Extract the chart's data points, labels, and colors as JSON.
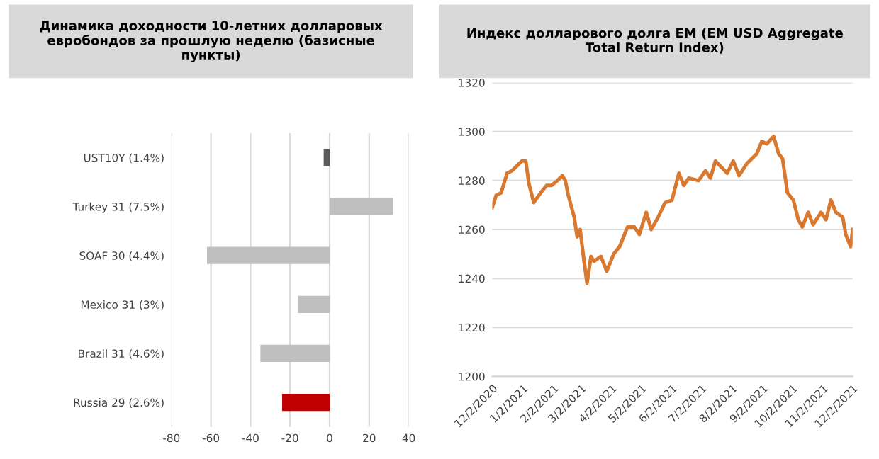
{
  "chart_data": [
    {
      "type": "bar",
      "orientation": "horizontal",
      "title": "Динамика доходности 10-летних долларовых евробондов за прошлую неделю (базисные пункты)",
      "categories": [
        "UST10Y (1.4%)",
        "Turkey 31 (7.5%)",
        "SOAF 30 (4.4%)",
        "Mexico 31 (3%)",
        "Brazil 31 (4.6%)",
        "Russia 29 (2.6%)"
      ],
      "values": [
        -3,
        32,
        -62,
        -16,
        -35,
        -24
      ],
      "colors": [
        "#595959",
        "#bfbfbf",
        "#bfbfbf",
        "#bfbfbf",
        "#bfbfbf",
        "#c00000"
      ],
      "xlim": [
        -80,
        40
      ],
      "xticks": [
        -80,
        -60,
        -40,
        -20,
        0,
        20,
        40
      ],
      "grid": "x"
    },
    {
      "type": "line",
      "title": "Индекс долларового долга EM (EM USD Aggregate Total Return Index)",
      "x": [
        "2020-12-02",
        "2020-12-06",
        "2020-12-11",
        "2020-12-17",
        "2020-12-22",
        "2020-12-27",
        "2021-01-01",
        "2021-01-05",
        "2021-01-08",
        "2021-01-13",
        "2021-01-20",
        "2021-01-26",
        "2021-01-31",
        "2021-02-06",
        "2021-02-11",
        "2021-02-14",
        "2021-02-17",
        "2021-02-23",
        "2021-02-26",
        "2021-03-01",
        "2021-03-05",
        "2021-03-08",
        "2021-03-12",
        "2021-03-15",
        "2021-03-22",
        "2021-03-28",
        "2021-04-04",
        "2021-04-10",
        "2021-04-18",
        "2021-04-25",
        "2021-04-30",
        "2021-05-07",
        "2021-05-12",
        "2021-05-19",
        "2021-05-26",
        "2021-06-02",
        "2021-06-09",
        "2021-06-14",
        "2021-06-19",
        "2021-06-29",
        "2021-07-06",
        "2021-07-11",
        "2021-07-16",
        "2021-07-28",
        "2021-08-03",
        "2021-08-09",
        "2021-08-17",
        "2021-08-27",
        "2021-09-01",
        "2021-09-06",
        "2021-09-13",
        "2021-09-18",
        "2021-09-22",
        "2021-09-27",
        "2021-10-03",
        "2021-10-08",
        "2021-10-12",
        "2021-10-18",
        "2021-10-23",
        "2021-10-31",
        "2021-11-05",
        "2021-11-10",
        "2021-11-15",
        "2021-11-22",
        "2021-11-25",
        "2021-11-30",
        "2021-12-02"
      ],
      "series": [
        {
          "color": "#d9782f",
          "values": [
            1269,
            1274,
            1275,
            1283,
            1284,
            1286,
            1288,
            1288,
            1279,
            1271,
            1275,
            1278,
            1278,
            1280,
            1282,
            1280,
            1274,
            1265,
            1257,
            1260,
            1247,
            1238,
            1249,
            1247,
            1249,
            1243,
            1250,
            1253,
            1261,
            1261,
            1258,
            1267,
            1260,
            1265,
            1271,
            1272,
            1283,
            1278,
            1281,
            1280,
            1284,
            1281,
            1288,
            1283,
            1288,
            1282,
            1287,
            1291,
            1296,
            1295,
            1298,
            1291,
            1289,
            1275,
            1272,
            1264,
            1261,
            1267,
            1262,
            1267,
            1264,
            1272,
            1267,
            1265,
            1258,
            1253,
            1260
          ]
        }
      ],
      "xlim": [
        "2020-12-02",
        "2021-12-02"
      ],
      "xticks": [
        {
          "value": "2020-12-02",
          "label": "12/2/2020"
        },
        {
          "value": "2021-01-02",
          "label": "1/2/2021"
        },
        {
          "value": "2021-02-02",
          "label": "2/2/2021"
        },
        {
          "value": "2021-03-02",
          "label": "3/2/2021"
        },
        {
          "value": "2021-04-02",
          "label": "4/2/2021"
        },
        {
          "value": "2021-05-02",
          "label": "5/2/2021"
        },
        {
          "value": "2021-06-02",
          "label": "6/2/2021"
        },
        {
          "value": "2021-07-02",
          "label": "7/2/2021"
        },
        {
          "value": "2021-08-02",
          "label": "8/2/2021"
        },
        {
          "value": "2021-09-02",
          "label": "9/2/2021"
        },
        {
          "value": "2021-10-02",
          "label": "10/2/2021"
        },
        {
          "value": "2021-11-02",
          "label": "11/2/2021"
        },
        {
          "value": "2021-12-02",
          "label": "12/2/2021"
        }
      ],
      "ylim": [
        1200,
        1320
      ],
      "yticks": [
        1200,
        1220,
        1240,
        1260,
        1280,
        1300,
        1320
      ],
      "grid": "y"
    }
  ]
}
